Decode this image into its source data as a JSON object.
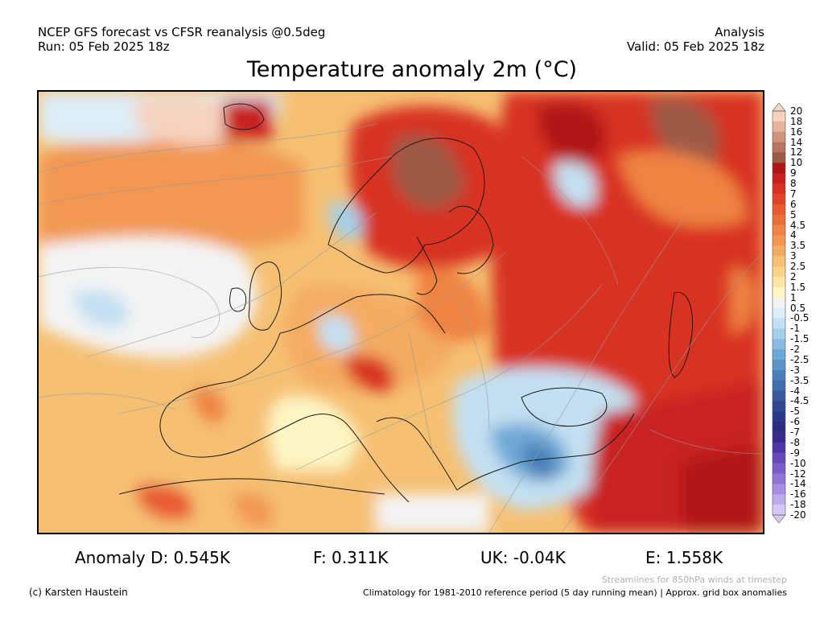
{
  "header": {
    "left_line1": "NCEP GFS forecast vs CFSR reanalysis @0.5deg",
    "left_line2": "Run: 05 Feb 2025 18z",
    "right_line1": "Analysis",
    "right_line2": "Valid: 05 Feb 2025 18z"
  },
  "title": "Temperature anomaly 2m (°C)",
  "colorbar": {
    "labels": [
      "20",
      "18",
      "16",
      "14",
      "12",
      "10",
      "9",
      "8",
      "7",
      "6",
      "5",
      "4.5",
      "4",
      "3.5",
      "3",
      "2.5",
      "2",
      "1.5",
      "1",
      "0.5",
      "-0.5",
      "-1",
      "-1.5",
      "-2",
      "-2.5",
      "-3",
      "-3.5",
      "-4",
      "-4.5",
      "-5",
      "-6",
      "-7",
      "-8",
      "-9",
      "-10",
      "-12",
      "-14",
      "-16",
      "-18",
      "-20"
    ],
    "colors": [
      "#f6d3c0",
      "#e6b39c",
      "#d0937b",
      "#b87660",
      "#9d5a47",
      "#b01515",
      "#c82020",
      "#d83024",
      "#e2432a",
      "#e85a30",
      "#eb6e38",
      "#ef8343",
      "#f29852",
      "#f4ac62",
      "#f6c073",
      "#f8d488",
      "#fbe6a2",
      "#fdf6c4",
      "#f4f4f4",
      "#ddeef8",
      "#c3e0f2",
      "#a5d0ea",
      "#88bde0",
      "#6ea9d6",
      "#5995c9",
      "#4a80ba",
      "#3f6cab",
      "#375a9d",
      "#2f4891",
      "#2a3a86",
      "#2a2d80",
      "#3a2a8e",
      "#4e37a4",
      "#6648b8",
      "#7c5ccb",
      "#9274d9",
      "#a88ee4",
      "#bfaaec",
      "#d6c8f4"
    ]
  },
  "stats": {
    "d": "Anomaly D: 0.545K",
    "f": "F: 0.311K",
    "uk": "UK: -0.04K",
    "e": "E: 1.558K"
  },
  "footer": {
    "credit": "(c) Karsten Haustein",
    "streamlines_note": "Streamlines for 850hPa winds at timestep",
    "climatology_note": "Climatology for 1981-2010 reference period (5 day running mean) | Approx. grid box anomalies"
  }
}
